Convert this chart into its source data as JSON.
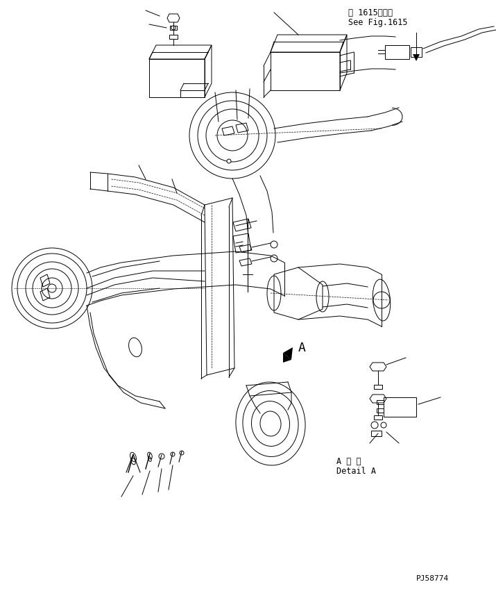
{
  "background_color": "#ffffff",
  "line_color": "#000000",
  "title_top_right_line1": "第 1615図参照",
  "title_top_right_line2": "See Fig.1615",
  "detail_label_line1": "A 詳 細",
  "detail_label_line2": "Detail A",
  "part_number": "PJ58774",
  "label_A": "A",
  "fig_width": 7.15,
  "fig_height": 8.48,
  "dpi": 100
}
